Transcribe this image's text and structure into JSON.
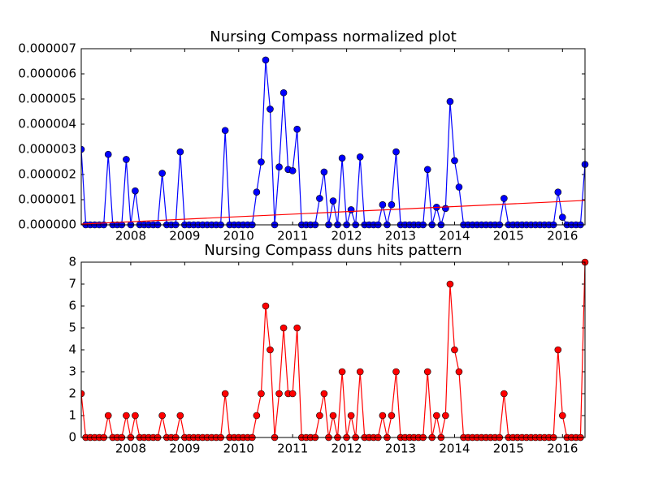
{
  "chart_data": [
    {
      "type": "line",
      "title": "Nursing Compass normalized plot",
      "x": [
        2007.083,
        2007.167,
        2007.25,
        2007.333,
        2007.417,
        2007.5,
        2007.583,
        2007.667,
        2007.75,
        2007.833,
        2007.917,
        2008,
        2008.083,
        2008.167,
        2008.25,
        2008.333,
        2008.417,
        2008.5,
        2008.583,
        2008.667,
        2008.75,
        2008.833,
        2008.917,
        2009,
        2009.083,
        2009.167,
        2009.25,
        2009.333,
        2009.417,
        2009.5,
        2009.583,
        2009.667,
        2009.75,
        2009.833,
        2009.917,
        2010,
        2010.083,
        2010.167,
        2010.25,
        2010.333,
        2010.417,
        2010.5,
        2010.583,
        2010.667,
        2010.75,
        2010.833,
        2010.917,
        2011,
        2011.083,
        2011.167,
        2011.25,
        2011.333,
        2011.417,
        2011.5,
        2011.583,
        2011.667,
        2011.75,
        2011.833,
        2011.917,
        2012,
        2012.083,
        2012.167,
        2012.25,
        2012.333,
        2012.417,
        2012.5,
        2012.583,
        2012.667,
        2012.75,
        2012.833,
        2012.917,
        2013,
        2013.083,
        2013.167,
        2013.25,
        2013.333,
        2013.417,
        2013.5,
        2013.583,
        2013.667,
        2013.75,
        2013.833,
        2013.917,
        2014,
        2014.083,
        2014.167,
        2014.25,
        2014.333,
        2014.417,
        2014.5,
        2014.583,
        2014.667,
        2014.75,
        2014.833,
        2014.917,
        2015,
        2015.083,
        2015.167,
        2015.25,
        2015.333,
        2015.417,
        2015.5,
        2015.583,
        2015.667,
        2015.75,
        2015.833,
        2015.917,
        2016,
        2016.083,
        2016.167,
        2016.25,
        2016.333,
        2016.417
      ],
      "series": [
        {
          "color": "#0000ff",
          "marker": "o",
          "values": [
            3e-06,
            0,
            0,
            0,
            0,
            0,
            2.8e-06,
            0,
            0,
            0,
            2.6e-06,
            0,
            1.35e-06,
            0,
            0,
            0,
            0,
            0,
            2.05e-06,
            0,
            0,
            0,
            2.9e-06,
            0,
            0,
            0,
            0,
            0,
            0,
            0,
            0,
            0,
            3.75e-06,
            0,
            0,
            0,
            0,
            0,
            0,
            1.3e-06,
            2.5e-06,
            6.55e-06,
            4.6e-06,
            0,
            2.3e-06,
            5.25e-06,
            2.2e-06,
            2.15e-06,
            3.8e-06,
            0,
            0,
            0,
            0,
            1.05e-06,
            2.1e-06,
            0,
            9.5e-07,
            0,
            2.65e-06,
            0,
            6e-07,
            0,
            2.7e-06,
            0,
            0,
            0,
            0,
            8e-07,
            0,
            8e-07,
            2.9e-06,
            0,
            0,
            0,
            0,
            0,
            0,
            2.2e-06,
            0,
            7e-07,
            0,
            6.5e-07,
            4.9e-06,
            2.55e-06,
            1.5e-06,
            0,
            0,
            0,
            0,
            0,
            0,
            0,
            0,
            0,
            1.05e-06,
            0,
            0,
            0,
            0,
            0,
            0,
            0,
            0,
            0,
            0,
            0,
            1.3e-06,
            3e-07,
            0,
            0,
            0,
            0,
            2.4e-06
          ]
        },
        {
          "color": "#ff0000",
          "x": [
            2007.083,
            2016.417
          ],
          "values": [
            3e-08,
            9.7e-07
          ]
        }
      ],
      "xlim": [
        2007.083,
        2016.417
      ],
      "xticks": [
        2008,
        2009,
        2010,
        2011,
        2012,
        2013,
        2014,
        2015,
        2016
      ],
      "ylim": [
        0,
        7e-06
      ],
      "yticks": [
        {
          "value": 0,
          "label": "0.000000"
        },
        {
          "value": 1e-06,
          "label": "0.000001"
        },
        {
          "value": 2e-06,
          "label": "0.000002"
        },
        {
          "value": 3e-06,
          "label": "0.000003"
        },
        {
          "value": 4e-06,
          "label": "0.000004"
        },
        {
          "value": 5e-06,
          "label": "0.000005"
        },
        {
          "value": 6e-06,
          "label": "0.000006"
        },
        {
          "value": 7e-06,
          "label": "0.000007"
        }
      ]
    },
    {
      "type": "line",
      "title": "Nursing Compass duns hits pattern",
      "x": [
        2007.083,
        2007.167,
        2007.25,
        2007.333,
        2007.417,
        2007.5,
        2007.583,
        2007.667,
        2007.75,
        2007.833,
        2007.917,
        2008,
        2008.083,
        2008.167,
        2008.25,
        2008.333,
        2008.417,
        2008.5,
        2008.583,
        2008.667,
        2008.75,
        2008.833,
        2008.917,
        2009,
        2009.083,
        2009.167,
        2009.25,
        2009.333,
        2009.417,
        2009.5,
        2009.583,
        2009.667,
        2009.75,
        2009.833,
        2009.917,
        2010,
        2010.083,
        2010.167,
        2010.25,
        2010.333,
        2010.417,
        2010.5,
        2010.583,
        2010.667,
        2010.75,
        2010.833,
        2010.917,
        2011,
        2011.083,
        2011.167,
        2011.25,
        2011.333,
        2011.417,
        2011.5,
        2011.583,
        2011.667,
        2011.75,
        2011.833,
        2011.917,
        2012,
        2012.083,
        2012.167,
        2012.25,
        2012.333,
        2012.417,
        2012.5,
        2012.583,
        2012.667,
        2012.75,
        2012.833,
        2012.917,
        2013,
        2013.083,
        2013.167,
        2013.25,
        2013.333,
        2013.417,
        2013.5,
        2013.583,
        2013.667,
        2013.75,
        2013.833,
        2013.917,
        2014,
        2014.083,
        2014.167,
        2014.25,
        2014.333,
        2014.417,
        2014.5,
        2014.583,
        2014.667,
        2014.75,
        2014.833,
        2014.917,
        2015,
        2015.083,
        2015.167,
        2015.25,
        2015.333,
        2015.417,
        2015.5,
        2015.583,
        2015.667,
        2015.75,
        2015.833,
        2015.917,
        2016,
        2016.083,
        2016.167,
        2016.25,
        2016.333,
        2016.417
      ],
      "series": [
        {
          "color": "#ff0000",
          "marker": "o",
          "values": [
            2,
            0,
            0,
            0,
            0,
            0,
            1,
            0,
            0,
            0,
            1,
            0,
            1,
            0,
            0,
            0,
            0,
            0,
            1,
            0,
            0,
            0,
            1,
            0,
            0,
            0,
            0,
            0,
            0,
            0,
            0,
            0,
            2,
            0,
            0,
            0,
            0,
            0,
            0,
            1,
            2,
            6,
            4,
            0,
            2,
            5,
            2,
            2,
            5,
            0,
            0,
            0,
            0,
            1,
            2,
            0,
            1,
            0,
            3,
            0,
            1,
            0,
            3,
            0,
            0,
            0,
            0,
            1,
            0,
            1,
            3,
            0,
            0,
            0,
            0,
            0,
            0,
            3,
            0,
            1,
            0,
            1,
            7,
            4,
            3,
            0,
            0,
            0,
            0,
            0,
            0,
            0,
            0,
            0,
            2,
            0,
            0,
            0,
            0,
            0,
            0,
            0,
            0,
            0,
            0,
            0,
            4,
            1,
            0,
            0,
            0,
            0,
            8
          ]
        }
      ],
      "xlim": [
        2007.083,
        2016.417
      ],
      "xticks": [
        2008,
        2009,
        2010,
        2011,
        2012,
        2013,
        2014,
        2015,
        2016
      ],
      "ylim": [
        0,
        8
      ],
      "yticks": [
        0,
        1,
        2,
        3,
        4,
        5,
        6,
        7,
        8
      ]
    }
  ]
}
